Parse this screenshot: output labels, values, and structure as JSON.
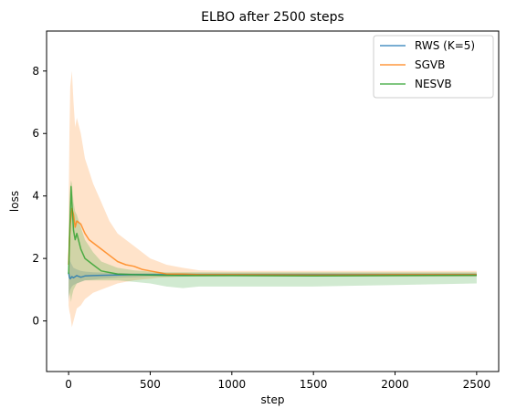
{
  "chart_data": {
    "type": "line",
    "title": "ELBO after 2500 steps",
    "xlabel": "step",
    "ylabel": "loss",
    "xlim": [
      -135,
      2635
    ],
    "ylim": [
      -1.62,
      9.28
    ],
    "xticks": [
      0,
      500,
      1000,
      1500,
      2000,
      2500
    ],
    "yticks": [
      0,
      2,
      4,
      6,
      8
    ],
    "grid": false,
    "legend_position": "top-right",
    "series": [
      {
        "name": "RWS (K=5)",
        "color": "#1f77b4",
        "x": [
          0,
          5,
          10,
          20,
          30,
          50,
          75,
          100,
          150,
          200,
          300,
          400,
          500,
          600,
          800,
          1000,
          1500,
          2000,
          2500
        ],
        "y": [
          1.55,
          1.4,
          1.35,
          1.42,
          1.38,
          1.45,
          1.4,
          1.44,
          1.45,
          1.46,
          1.47,
          1.48,
          1.48,
          1.48,
          1.48,
          1.48,
          1.48,
          1.48,
          1.48
        ],
        "band_low": [
          0.6,
          0.9,
          1.0,
          1.1,
          1.15,
          1.2,
          1.25,
          1.3,
          1.32,
          1.35,
          1.38,
          1.4,
          1.42,
          1.42,
          1.43,
          1.43,
          1.43,
          1.43,
          1.43
        ],
        "band_high": [
          2.6,
          2.0,
          1.9,
          1.8,
          1.7,
          1.65,
          1.6,
          1.58,
          1.56,
          1.55,
          1.54,
          1.53,
          1.53,
          1.53,
          1.53,
          1.53,
          1.53,
          1.53,
          1.53
        ]
      },
      {
        "name": "SGVB",
        "color": "#ff7f0e",
        "x": [
          0,
          5,
          10,
          20,
          30,
          40,
          50,
          75,
          100,
          125,
          150,
          200,
          250,
          300,
          350,
          400,
          450,
          500,
          550,
          600,
          700,
          800,
          1000,
          1500,
          2000,
          2500
        ],
        "y": [
          1.8,
          2.6,
          3.1,
          3.6,
          3.4,
          3.0,
          3.2,
          3.1,
          2.8,
          2.6,
          2.5,
          2.3,
          2.1,
          1.9,
          1.8,
          1.75,
          1.65,
          1.6,
          1.55,
          1.5,
          1.5,
          1.48,
          1.48,
          1.47,
          1.48,
          1.48
        ],
        "band_low": [
          0.5,
          0.3,
          0.2,
          -0.2,
          0.0,
          0.2,
          0.4,
          0.5,
          0.7,
          0.8,
          0.9,
          1.0,
          1.1,
          1.2,
          1.25,
          1.3,
          1.33,
          1.35,
          1.38,
          1.4,
          1.42,
          1.42,
          1.43,
          1.42,
          1.42,
          1.42
        ],
        "band_high": [
          3.5,
          6.0,
          7.5,
          8.0,
          7.0,
          6.2,
          6.5,
          6.0,
          5.2,
          4.8,
          4.4,
          3.8,
          3.2,
          2.8,
          2.6,
          2.4,
          2.2,
          2.0,
          1.9,
          1.8,
          1.7,
          1.62,
          1.6,
          1.6,
          1.6,
          1.6
        ]
      },
      {
        "name": "NESVB",
        "color": "#2ca02c",
        "x": [
          0,
          5,
          10,
          15,
          20,
          30,
          40,
          50,
          75,
          100,
          150,
          200,
          300,
          400,
          500,
          600,
          700,
          800,
          1000,
          1500,
          2000,
          2500
        ],
        "y": [
          1.5,
          2.5,
          3.4,
          4.3,
          3.8,
          2.9,
          2.6,
          2.8,
          2.3,
          2.0,
          1.8,
          1.6,
          1.5,
          1.48,
          1.47,
          1.46,
          1.45,
          1.45,
          1.45,
          1.44,
          1.45,
          1.46
        ],
        "band_low": [
          0.7,
          0.9,
          0.8,
          0.6,
          0.8,
          1.0,
          1.1,
          1.2,
          1.25,
          1.3,
          1.3,
          1.3,
          1.3,
          1.25,
          1.2,
          1.1,
          1.05,
          1.1,
          1.1,
          1.1,
          1.15,
          1.2
        ],
        "band_high": [
          2.4,
          3.6,
          4.3,
          4.5,
          4.4,
          3.8,
          3.5,
          3.4,
          3.0,
          2.6,
          2.2,
          1.9,
          1.7,
          1.62,
          1.58,
          1.56,
          1.56,
          1.56,
          1.56,
          1.56,
          1.56,
          1.56
        ]
      }
    ]
  }
}
